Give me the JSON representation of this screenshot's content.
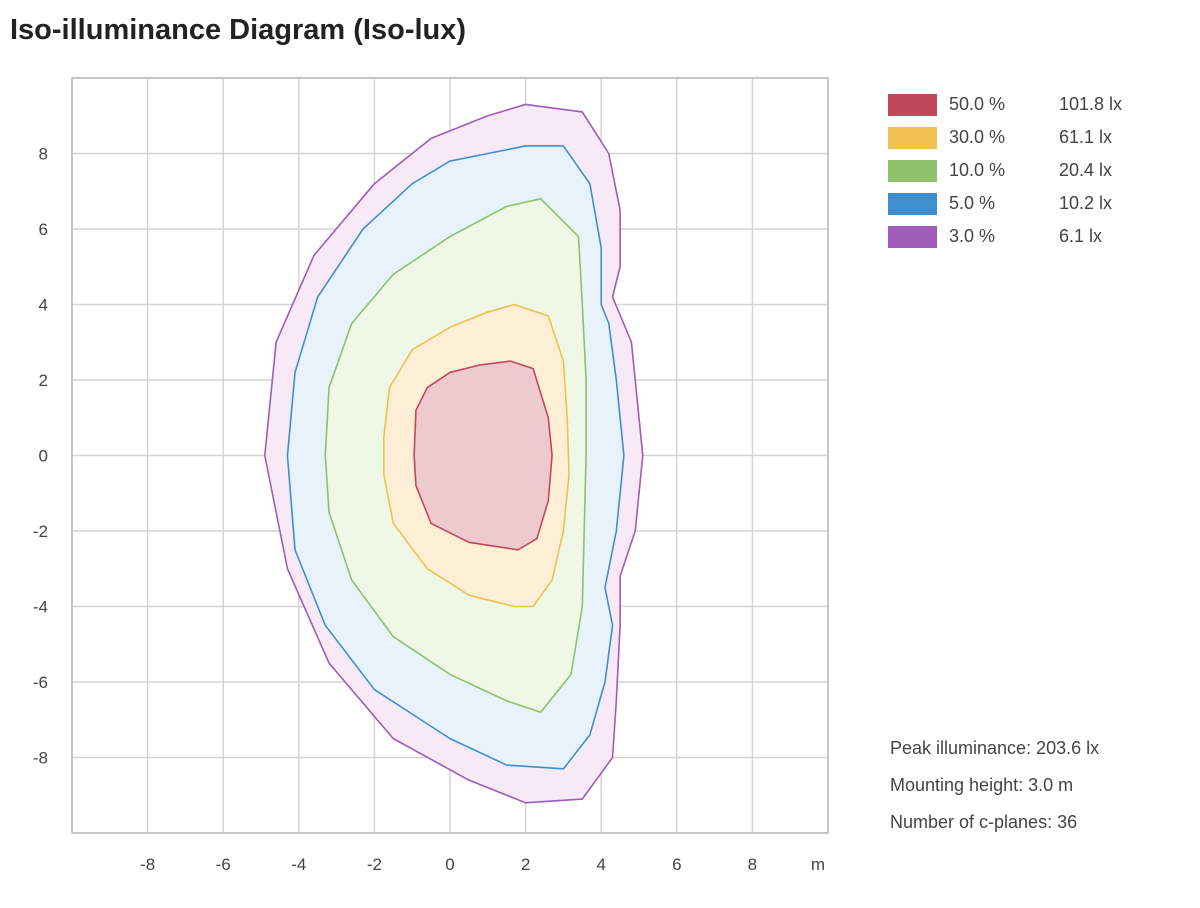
{
  "chart_data": {
    "type": "contour",
    "title": "Iso-illuminance Diagram (Iso-lux)",
    "xlabel": "m",
    "xlim": [
      -10,
      10
    ],
    "ylim": [
      -10,
      10
    ],
    "xticks": [
      -8,
      -6,
      -4,
      -2,
      0,
      2,
      4,
      6,
      8
    ],
    "yticks": [
      8,
      6,
      4,
      2,
      0,
      -2,
      -4,
      -6,
      -8
    ],
    "grid": true,
    "legend_position": "top-right",
    "series": [
      {
        "name": "3.0 %",
        "lux": "6.1 lx",
        "color": "#a05cb8",
        "fill": "#f7eaf6",
        "points": [
          [
            2.0,
            9.3
          ],
          [
            3.5,
            9.1
          ],
          [
            4.2,
            8
          ],
          [
            4.5,
            6.5
          ],
          [
            4.5,
            5
          ],
          [
            4.3,
            4.2
          ],
          [
            4.8,
            3
          ],
          [
            5.0,
            1
          ],
          [
            5.1,
            0
          ],
          [
            4.9,
            -2
          ],
          [
            4.5,
            -3.2
          ],
          [
            4.5,
            -4.5
          ],
          [
            4.4,
            -6.5
          ],
          [
            4.3,
            -8
          ],
          [
            3.5,
            -9.1
          ],
          [
            2.0,
            -9.2
          ],
          [
            0.5,
            -8.6
          ],
          [
            -1.5,
            -7.5
          ],
          [
            -3.2,
            -5.5
          ],
          [
            -4.3,
            -3
          ],
          [
            -4.9,
            0
          ],
          [
            -4.6,
            3
          ],
          [
            -3.6,
            5.3
          ],
          [
            -2,
            7.2
          ],
          [
            -0.5,
            8.4
          ],
          [
            1,
            9.0
          ]
        ]
      },
      {
        "name": "5.0 %",
        "lux": "10.2 lx",
        "color": "#3f8fcf",
        "fill": "#e8f2fb",
        "points": [
          [
            1.0,
            8.0
          ],
          [
            2.0,
            8.2
          ],
          [
            3.0,
            8.2
          ],
          [
            3.7,
            7.2
          ],
          [
            4.0,
            5.5
          ],
          [
            4.0,
            4.0
          ],
          [
            4.2,
            3.5
          ],
          [
            4.4,
            2
          ],
          [
            4.6,
            0
          ],
          [
            4.4,
            -2
          ],
          [
            4.1,
            -3.5
          ],
          [
            4.3,
            -4.5
          ],
          [
            4.1,
            -6
          ],
          [
            3.7,
            -7.4
          ],
          [
            3.0,
            -8.3
          ],
          [
            1.5,
            -8.2
          ],
          [
            0,
            -7.5
          ],
          [
            -2,
            -6.2
          ],
          [
            -3.3,
            -4.5
          ],
          [
            -4.1,
            -2.5
          ],
          [
            -4.3,
            0
          ],
          [
            -4.1,
            2.2
          ],
          [
            -3.5,
            4.2
          ],
          [
            -2.3,
            6.0
          ],
          [
            -1,
            7.2
          ],
          [
            0,
            7.8
          ]
        ]
      },
      {
        "name": "10.0 %",
        "lux": "20.4 lx",
        "color": "#8fc06a",
        "fill": "#eff7e6",
        "points": [
          [
            2.4,
            6.8
          ],
          [
            3.4,
            5.8
          ],
          [
            3.5,
            4
          ],
          [
            3.6,
            2
          ],
          [
            3.6,
            0
          ],
          [
            3.55,
            -2
          ],
          [
            3.5,
            -4
          ],
          [
            3.2,
            -5.8
          ],
          [
            2.4,
            -6.8
          ],
          [
            1.5,
            -6.5
          ],
          [
            0,
            -5.8
          ],
          [
            -1.5,
            -4.8
          ],
          [
            -2.6,
            -3.3
          ],
          [
            -3.2,
            -1.5
          ],
          [
            -3.3,
            0
          ],
          [
            -3.2,
            1.8
          ],
          [
            -2.6,
            3.5
          ],
          [
            -1.5,
            4.8
          ],
          [
            0,
            5.8
          ],
          [
            1.5,
            6.6
          ]
        ]
      },
      {
        "name": "30.0 %",
        "lux": "61.1 lx",
        "color": "#f0c050",
        "fill": "#fcefd6",
        "points": [
          [
            1.7,
            4.0
          ],
          [
            2.6,
            3.7
          ],
          [
            3.0,
            2.5
          ],
          [
            3.1,
            1
          ],
          [
            3.15,
            -0.5
          ],
          [
            3.0,
            -2
          ],
          [
            2.7,
            -3.3
          ],
          [
            2.2,
            -4.0
          ],
          [
            1.7,
            -4.0
          ],
          [
            0.5,
            -3.7
          ],
          [
            -0.6,
            -3.0
          ],
          [
            -1.5,
            -1.8
          ],
          [
            -1.75,
            -0.5
          ],
          [
            -1.75,
            0.5
          ],
          [
            -1.6,
            1.8
          ],
          [
            -1.0,
            2.8
          ],
          [
            0,
            3.4
          ],
          [
            1.0,
            3.8
          ]
        ]
      },
      {
        "name": "50.0 %",
        "lux": "101.8 lx",
        "color": "#c0485a",
        "fill": "#eec9ce",
        "points": [
          [
            1.6,
            2.5
          ],
          [
            2.2,
            2.3
          ],
          [
            2.6,
            1.0
          ],
          [
            2.7,
            0
          ],
          [
            2.6,
            -1.2
          ],
          [
            2.3,
            -2.2
          ],
          [
            1.8,
            -2.5
          ],
          [
            0.5,
            -2.3
          ],
          [
            -0.5,
            -1.8
          ],
          [
            -0.9,
            -0.8
          ],
          [
            -0.95,
            0
          ],
          [
            -0.9,
            1.2
          ],
          [
            -0.6,
            1.8
          ],
          [
            0,
            2.2
          ],
          [
            0.8,
            2.4
          ]
        ]
      }
    ],
    "legend": [
      {
        "pct": "50.0 %",
        "lux": "101.8 lx",
        "color": "#c0485a"
      },
      {
        "pct": "30.0 %",
        "lux": "61.1 lx",
        "color": "#f0c050"
      },
      {
        "pct": "10.0 %",
        "lux": "20.4 lx",
        "color": "#8fc06a"
      },
      {
        "pct": "5.0 %",
        "lux": "10.2 lx",
        "color": "#3f8fcf"
      },
      {
        "pct": "3.0 %",
        "lux": "6.1 lx",
        "color": "#a05cb8"
      }
    ]
  },
  "info": {
    "peak": "Peak illuminance: 203.6 lx",
    "height": "Mounting height: 3.0 m",
    "cplanes": "Number of c-planes: 36"
  }
}
